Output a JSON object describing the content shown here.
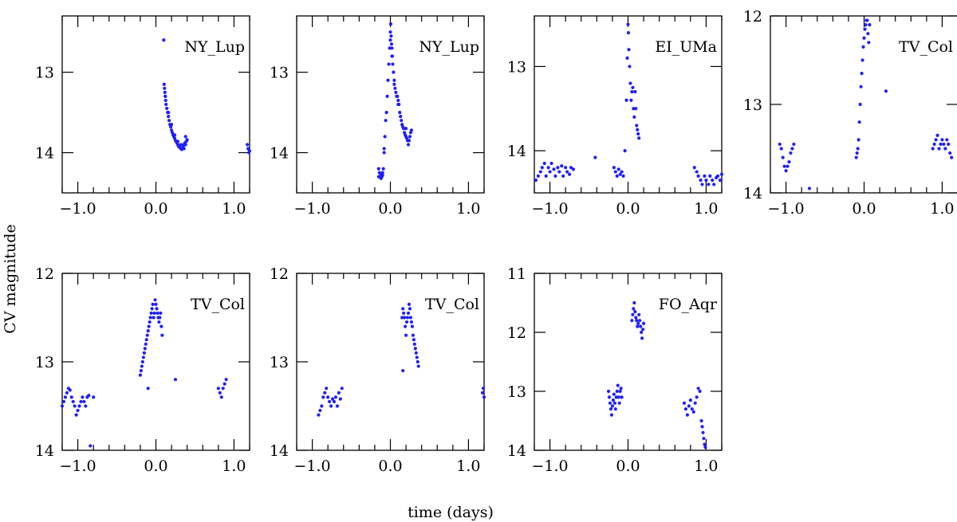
{
  "figure": {
    "xlabel": "time (days)",
    "ylabel": "CV magnitude",
    "point_color": "#1f1fff"
  },
  "chart_data": [
    {
      "type": "scatter",
      "title": "NY_Lup",
      "xlim": [
        -1.2,
        1.2
      ],
      "ylim": [
        14.5,
        12.3
      ],
      "xticks": [
        "-1.0",
        "0.0",
        "1.0"
      ],
      "yticks": [
        "13",
        "14"
      ],
      "series": [
        {
          "x": [
            0.1,
            0.105,
            0.11,
            0.115,
            0.12,
            0.125,
            0.13,
            0.14,
            0.15,
            0.16,
            0.17,
            0.18,
            0.19,
            0.2,
            0.21,
            0.22,
            0.23,
            0.24,
            0.25,
            0.26,
            0.27,
            0.28,
            0.29,
            0.3,
            0.31,
            0.32,
            0.33,
            0.34,
            0.35,
            0.36,
            0.37,
            0.38,
            0.39,
            0.4,
            0.12,
            0.16,
            0.2,
            0.24,
            0.28,
            0.32,
            0.36,
            0.38,
            1.17,
            1.18,
            1.19,
            1.2
          ],
          "y": [
            12.6,
            13.15,
            13.2,
            13.25,
            13.3,
            13.35,
            13.4,
            13.45,
            13.5,
            13.55,
            13.6,
            13.65,
            13.68,
            13.72,
            13.75,
            13.78,
            13.8,
            13.82,
            13.85,
            13.86,
            13.88,
            13.9,
            13.92,
            13.93,
            13.94,
            13.95,
            13.96,
            13.95,
            13.92,
            13.9,
            13.88,
            13.9,
            13.86,
            13.84,
            13.3,
            13.5,
            13.65,
            13.78,
            13.86,
            13.9,
            13.95,
            13.8,
            13.9,
            13.95,
            14.0,
            13.98
          ]
        }
      ]
    },
    {
      "type": "scatter",
      "title": "NY_Lup",
      "xlim": [
        -1.2,
        1.2
      ],
      "ylim": [
        14.5,
        12.3
      ],
      "xticks": [
        "-1.0",
        "0.0",
        "1.0"
      ],
      "yticks": [
        "13",
        "14"
      ],
      "series": [
        {
          "x": [
            -0.15,
            -0.14,
            -0.13,
            -0.12,
            -0.11,
            -0.1,
            -0.09,
            -0.08,
            -0.07,
            -0.06,
            -0.05,
            -0.04,
            -0.03,
            -0.02,
            -0.01,
            0.0,
            0.005,
            0.01,
            0.015,
            0.02,
            0.025,
            0.03,
            0.04,
            0.05,
            0.06,
            0.07,
            0.08,
            0.09,
            0.1,
            0.11,
            0.12,
            0.13,
            0.14,
            0.15,
            0.16,
            0.17,
            0.18,
            0.19,
            0.2,
            0.21,
            0.22,
            0.23,
            0.24,
            0.25,
            0.26,
            0.27,
            -0.15,
            -0.12,
            -0.1,
            -0.08,
            0.0,
            0.02,
            0.05,
            0.1,
            0.2
          ],
          "y": [
            14.2,
            14.25,
            14.3,
            14.28,
            14.3,
            14.25,
            14.2,
            14.0,
            13.8,
            13.6,
            13.5,
            13.3,
            13.1,
            12.9,
            12.7,
            12.5,
            12.4,
            12.55,
            12.65,
            12.7,
            12.8,
            12.9,
            13.0,
            13.1,
            13.2,
            13.25,
            13.3,
            13.3,
            13.35,
            13.4,
            13.5,
            13.55,
            13.6,
            13.65,
            13.68,
            13.7,
            13.75,
            13.78,
            13.8,
            13.82,
            13.85,
            13.9,
            13.85,
            13.8,
            13.75,
            13.72,
            14.3,
            14.32,
            14.28,
            13.95,
            12.6,
            12.8,
            13.15,
            13.4,
            13.7
          ]
        }
      ]
    },
    {
      "type": "scatter",
      "title": "EI_UMa",
      "xlim": [
        -1.2,
        1.2
      ],
      "ylim": [
        14.5,
        12.4
      ],
      "xticks": [
        "-1.0",
        "0.0",
        "1.0"
      ],
      "yticks": [
        "13",
        "14"
      ],
      "series": [
        {
          "x": [
            -1.18,
            -1.15,
            -1.12,
            -1.1,
            -1.07,
            -1.05,
            -1.02,
            -1.0,
            -0.98,
            -0.95,
            -0.93,
            -0.9,
            -0.88,
            -0.85,
            -0.83,
            -0.8,
            -0.78,
            -0.75,
            -0.73,
            -0.7,
            -0.42,
            -0.18,
            -0.16,
            -0.14,
            -0.12,
            -0.1,
            -0.08,
            -0.06,
            -0.04,
            -0.02,
            -0.01,
            0.0,
            0.005,
            0.01,
            0.02,
            0.03,
            0.04,
            0.05,
            0.06,
            0.07,
            0.08,
            0.09,
            0.1,
            0.11,
            0.12,
            0.13,
            0.14,
            0.85,
            0.88,
            0.9,
            0.93,
            0.95,
            0.98,
            1.0,
            1.03,
            1.05,
            1.08,
            1.1,
            1.13,
            1.15,
            1.18,
            1.2
          ],
          "y": [
            14.35,
            14.3,
            14.25,
            14.2,
            14.15,
            14.3,
            14.2,
            14.25,
            14.15,
            14.22,
            14.3,
            14.2,
            14.25,
            14.18,
            14.3,
            14.2,
            14.25,
            14.28,
            14.2,
            14.22,
            14.08,
            14.2,
            14.25,
            14.3,
            14.22,
            14.28,
            14.25,
            14.3,
            14.0,
            13.4,
            12.9,
            12.5,
            12.6,
            12.8,
            13.0,
            13.2,
            13.4,
            13.3,
            13.25,
            13.5,
            13.6,
            13.3,
            13.5,
            13.7,
            13.75,
            13.8,
            13.85,
            14.2,
            14.25,
            14.3,
            14.35,
            14.4,
            14.3,
            14.35,
            14.4,
            14.3,
            14.35,
            14.4,
            14.32,
            14.3,
            14.35,
            14.28
          ]
        }
      ]
    },
    {
      "type": "scatter",
      "title": "TV_Col",
      "xlim": [
        -1.2,
        1.2
      ],
      "ylim": [
        14.0,
        12.0
      ],
      "xticks": [
        "-1.0",
        "0.0",
        "1.0"
      ],
      "yticks": [
        "12",
        "13",
        "14"
      ],
      "series": [
        {
          "x": [
            -1.08,
            -1.06,
            -1.04,
            -1.02,
            -1.0,
            -0.98,
            -0.96,
            -0.94,
            -0.92,
            -0.9,
            -0.7,
            -0.1,
            -0.09,
            -0.08,
            -0.07,
            -0.06,
            -0.05,
            -0.04,
            -0.03,
            -0.02,
            -0.01,
            0.0,
            0.01,
            0.02,
            0.03,
            0.04,
            0.05,
            0.06,
            0.07,
            0.28,
            0.88,
            0.9,
            0.92,
            0.94,
            0.96,
            0.98,
            1.0,
            1.02,
            1.04,
            1.06,
            1.08,
            1.1,
            1.12
          ],
          "y": [
            13.45,
            13.5,
            13.6,
            13.7,
            13.75,
            13.7,
            13.65,
            13.55,
            13.5,
            13.45,
            13.95,
            13.6,
            13.55,
            13.5,
            13.4,
            13.2,
            13.0,
            12.8,
            12.65,
            12.5,
            12.35,
            12.25,
            12.15,
            12.1,
            12.05,
            12.05,
            12.2,
            12.3,
            12.1,
            12.85,
            13.5,
            13.45,
            13.4,
            13.35,
            13.5,
            13.45,
            13.4,
            13.45,
            13.5,
            13.4,
            13.45,
            13.55,
            13.6
          ]
        }
      ]
    },
    {
      "type": "scatter",
      "title": "TV_Col",
      "xlim": [
        -1.2,
        1.2
      ],
      "ylim": [
        14.0,
        12.0
      ],
      "xticks": [
        "-1.0",
        "0.0",
        "1.0"
      ],
      "yticks": [
        "12",
        "13",
        "14"
      ],
      "series": [
        {
          "x": [
            -1.2,
            -1.18,
            -1.16,
            -1.14,
            -1.12,
            -1.1,
            -1.08,
            -1.06,
            -1.04,
            -1.02,
            -1.0,
            -0.98,
            -0.96,
            -0.94,
            -0.92,
            -0.9,
            -0.88,
            -0.86,
            -0.84,
            -0.8,
            -0.2,
            -0.19,
            -0.18,
            -0.17,
            -0.16,
            -0.15,
            -0.14,
            -0.13,
            -0.12,
            -0.11,
            -0.1,
            -0.09,
            -0.08,
            -0.07,
            -0.06,
            -0.05,
            -0.04,
            -0.03,
            -0.02,
            -0.01,
            0.0,
            0.01,
            0.02,
            0.03,
            0.04,
            0.05,
            0.06,
            0.07,
            0.08,
            -0.1,
            0.25,
            0.8,
            0.82,
            0.84,
            0.86,
            0.88,
            0.9
          ],
          "y": [
            13.5,
            13.45,
            13.4,
            13.35,
            13.3,
            13.32,
            13.4,
            13.45,
            13.5,
            13.6,
            13.55,
            13.5,
            13.45,
            13.4,
            13.45,
            13.5,
            13.4,
            13.38,
            13.95,
            13.4,
            13.15,
            13.1,
            13.05,
            13.0,
            12.95,
            12.9,
            12.85,
            12.8,
            12.75,
            12.7,
            12.65,
            12.6,
            12.55,
            12.5,
            12.45,
            12.4,
            12.35,
            12.5,
            12.45,
            12.3,
            12.35,
            12.4,
            12.45,
            12.5,
            12.55,
            12.5,
            12.45,
            12.6,
            12.7,
            13.3,
            13.2,
            13.3,
            13.35,
            13.4,
            13.3,
            13.25,
            13.2
          ]
        }
      ]
    },
    {
      "type": "scatter",
      "title": "TV_Col",
      "xlim": [
        -1.2,
        1.2
      ],
      "ylim": [
        14.0,
        12.0
      ],
      "xticks": [
        "-1.0",
        "0.0",
        "1.0"
      ],
      "yticks": [
        "12",
        "13",
        "14"
      ],
      "series": [
        {
          "x": [
            -0.92,
            -0.9,
            -0.88,
            -0.86,
            -0.84,
            -0.82,
            -0.8,
            -0.78,
            -0.76,
            -0.74,
            -0.72,
            -0.7,
            -0.68,
            -0.66,
            -0.64,
            -0.62,
            0.15,
            0.16,
            0.17,
            0.18,
            0.19,
            0.2,
            0.21,
            0.22,
            0.23,
            0.24,
            0.25,
            0.26,
            0.27,
            0.28,
            0.29,
            0.3,
            0.31,
            0.32,
            0.33,
            0.34,
            0.35,
            0.36,
            0.16,
            1.18,
            1.19,
            1.2
          ],
          "y": [
            13.6,
            13.55,
            13.5,
            13.4,
            13.35,
            13.3,
            13.4,
            13.45,
            13.5,
            13.42,
            13.45,
            13.4,
            13.5,
            13.35,
            13.42,
            13.3,
            12.5,
            12.4,
            12.45,
            12.5,
            12.6,
            12.7,
            12.55,
            12.5,
            12.45,
            12.35,
            12.4,
            12.5,
            12.55,
            12.6,
            12.7,
            12.75,
            12.8,
            12.85,
            12.9,
            12.95,
            13.0,
            13.05,
            13.1,
            13.35,
            13.3,
            13.4
          ]
        }
      ]
    },
    {
      "type": "scatter",
      "title": "FO_Aqr",
      "xlim": [
        -1.2,
        1.2
      ],
      "ylim": [
        14.0,
        11.0
      ],
      "xticks": [
        "-1.0",
        "0.0",
        "1.0"
      ],
      "yticks": [
        "11",
        "12",
        "13",
        "14"
      ],
      "series": [
        {
          "x": [
            -0.25,
            -0.24,
            -0.23,
            -0.22,
            -0.21,
            -0.2,
            -0.19,
            -0.18,
            -0.17,
            -0.16,
            -0.15,
            -0.14,
            -0.13,
            -0.12,
            -0.11,
            -0.1,
            -0.09,
            -0.08,
            0.05,
            0.06,
            0.07,
            0.08,
            0.09,
            0.1,
            0.11,
            0.12,
            0.13,
            0.14,
            0.15,
            0.16,
            0.17,
            0.18,
            0.19,
            0.2,
            0.72,
            0.74,
            0.76,
            0.78,
            0.8,
            0.82,
            0.84,
            0.86,
            0.88,
            0.9,
            0.92,
            0.94,
            0.95,
            0.96,
            0.97,
            0.98,
            0.99
          ],
          "y": [
            13.0,
            13.1,
            13.2,
            13.3,
            13.4,
            13.25,
            13.15,
            13.05,
            13.2,
            13.3,
            13.1,
            13.0,
            12.9,
            13.1,
            13.2,
            13.0,
            12.95,
            13.1,
            11.8,
            11.7,
            11.6,
            11.5,
            11.65,
            11.75,
            11.8,
            11.9,
            11.85,
            11.7,
            11.8,
            11.9,
            12.0,
            12.1,
            11.95,
            11.85,
            13.2,
            13.3,
            13.4,
            13.25,
            13.15,
            13.3,
            13.35,
            13.2,
            13.1,
            12.95,
            13.0,
            13.5,
            13.6,
            13.7,
            13.8,
            13.9,
            13.95
          ]
        }
      ]
    }
  ]
}
